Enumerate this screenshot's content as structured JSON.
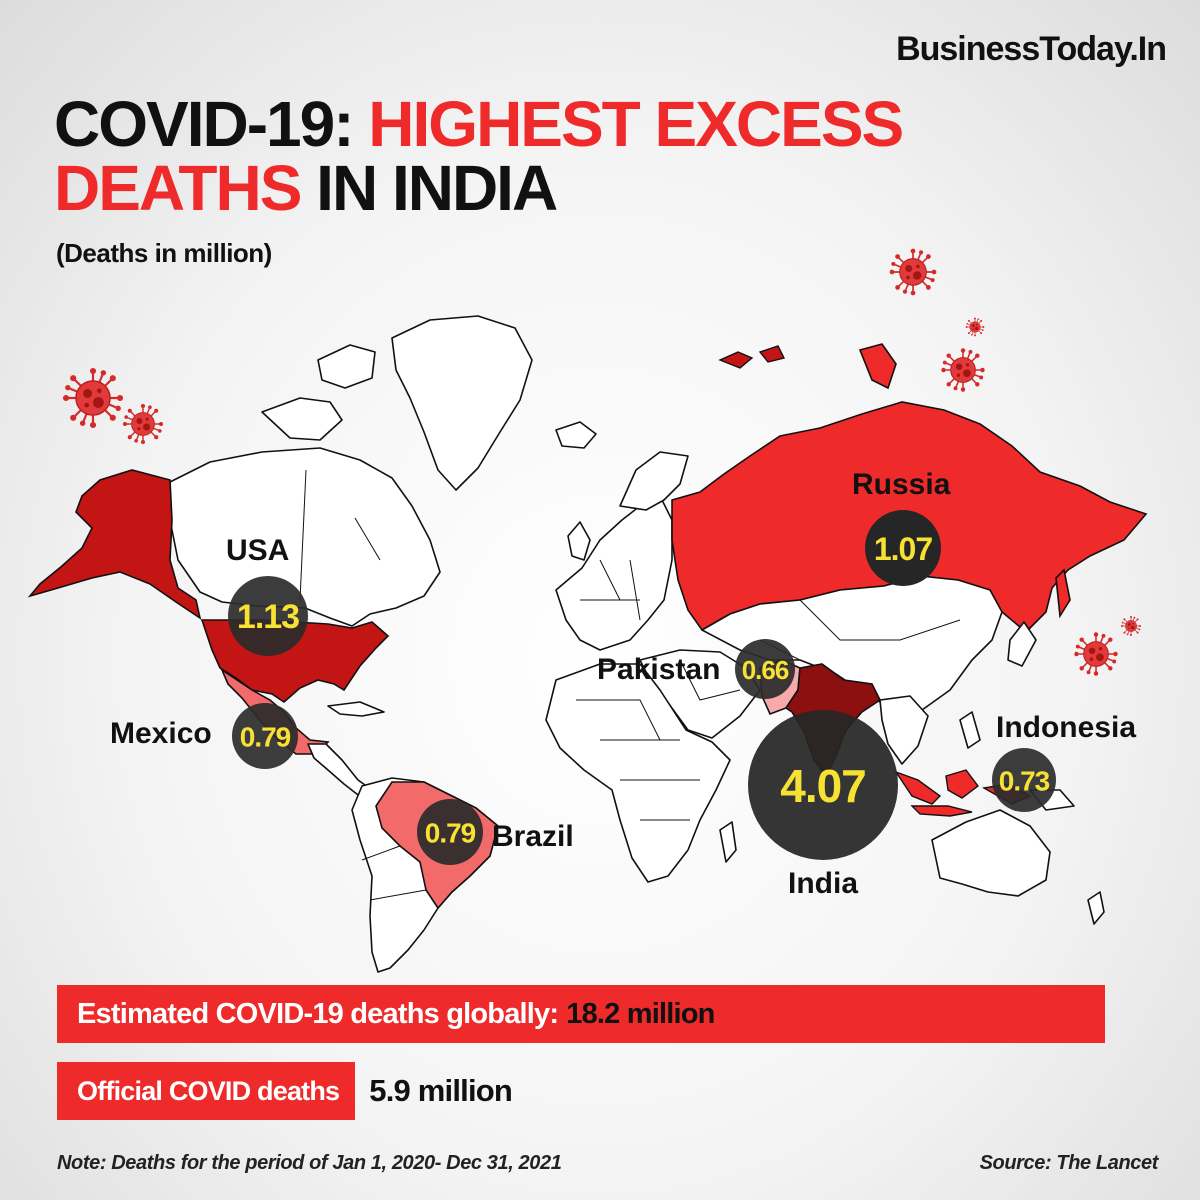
{
  "brand": "BusinessToday.In",
  "title": {
    "part1": "COVID-19: ",
    "part2": "HIGHEST EXCESS",
    "part3": "DEATHS",
    "part4": " IN INDIA"
  },
  "subtitle": "(Deaths in million)",
  "countries": [
    {
      "name": "USA",
      "value": "1.13"
    },
    {
      "name": "Mexico",
      "value": "0.79"
    },
    {
      "name": "Brazil",
      "value": "0.79"
    },
    {
      "name": "Russia",
      "value": "1.07"
    },
    {
      "name": "Pakistan",
      "value": "0.66"
    },
    {
      "name": "India",
      "value": "4.07"
    },
    {
      "name": "Indonesia",
      "value": "0.73"
    }
  ],
  "colors": {
    "accent_red": "#ee2a2a",
    "dark_red": "#c41515",
    "darker_red": "#8c1010",
    "light_red": "#f36a6a",
    "bubble": "#262626",
    "bubble_value": "#f7e234"
  },
  "icons": [
    "coronavirus-icon"
  ],
  "global": {
    "label": "Estimated COVID-19 deaths globally:",
    "value": "18.2 million"
  },
  "official": {
    "label": "Official COVID deaths",
    "value": "5.9 million"
  },
  "note": "Note: Deaths for the period of Jan 1, 2020- Dec 31, 2021",
  "source": "Source: The Lancet"
}
